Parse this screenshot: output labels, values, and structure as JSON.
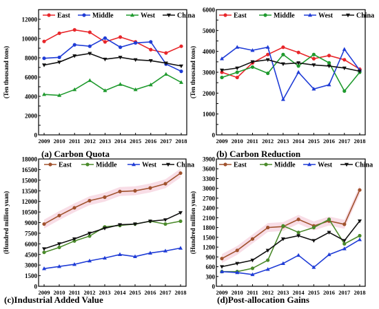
{
  "chart_data": [
    {
      "type": "line",
      "caption": "(a) Carbon Quota",
      "ylabel": "(Ten thousand tons)",
      "x": [
        "2009",
        "2010",
        "2011",
        "2012",
        "2013",
        "2014",
        "2015",
        "2016",
        "2017",
        "2018"
      ],
      "ylim": [
        0,
        13000
      ],
      "yticks": [
        0,
        1000,
        2000,
        3000,
        4000,
        5000,
        6000,
        7000,
        8000,
        9000,
        10000,
        11000,
        12000,
        13000
      ],
      "legend": "top",
      "series": [
        {
          "name": "East",
          "color": "#e8262a",
          "marker": "circle",
          "values": [
            9700,
            10550,
            10900,
            10650,
            9650,
            10150,
            9650,
            8850,
            8500,
            9200
          ]
        },
        {
          "name": "Middle",
          "color": "#1f3cd6",
          "marker": "circle",
          "values": [
            7950,
            8050,
            9350,
            9200,
            10050,
            9100,
            9550,
            9650,
            7350,
            6600
          ]
        },
        {
          "name": "West",
          "color": "#1f9a2e",
          "marker": "triangle",
          "values": [
            4200,
            4100,
            4700,
            5650,
            4600,
            5250,
            4700,
            5200,
            6300,
            5450
          ]
        },
        {
          "name": "China",
          "color": "#111111",
          "marker": "triangle-down",
          "values": [
            7250,
            7550,
            8200,
            8450,
            7850,
            8050,
            7800,
            7700,
            7450,
            7150
          ]
        }
      ]
    },
    {
      "type": "line",
      "caption": "(b)  Carbon Reduction",
      "ylabel": "(Ten thousand tons)",
      "x": [
        "2009",
        "2010",
        "2011",
        "2012",
        "2013",
        "2014",
        "2015",
        "2016",
        "2017",
        "2018"
      ],
      "ylim": [
        0,
        6000
      ],
      "yticks": [
        0,
        500,
        1000,
        1500,
        2000,
        2500,
        3000,
        3500,
        4000,
        4500,
        5000,
        5500,
        6000
      ],
      "legend": "top",
      "series": [
        {
          "name": "East",
          "color": "#e8262a",
          "marker": "circle",
          "values": [
            3000,
            2750,
            3450,
            3850,
            4200,
            3950,
            3650,
            3800,
            3600,
            3150
          ]
        },
        {
          "name": "Middle",
          "color": "#1f9a2e",
          "marker": "circle",
          "values": [
            2750,
            3000,
            3250,
            2950,
            3850,
            3300,
            3850,
            3450,
            2100,
            3000
          ]
        },
        {
          "name": "West",
          "color": "#1f3cd6",
          "marker": "triangle",
          "values": [
            3650,
            4200,
            4050,
            4200,
            1700,
            3000,
            2200,
            2400,
            4100,
            3100
          ]
        },
        {
          "name": "China",
          "color": "#111111",
          "marker": "triangle-down",
          "values": [
            3100,
            3200,
            3500,
            3600,
            3400,
            3450,
            3350,
            3300,
            3200,
            3050
          ]
        }
      ]
    },
    {
      "type": "line",
      "caption": "(c)Industrial Added Value",
      "ylabel": "(Hundred million yuan)",
      "x": [
        "2009",
        "2010",
        "2011",
        "2012",
        "2013",
        "2014",
        "2015",
        "2016",
        "2017",
        "2018"
      ],
      "ylim": [
        0,
        18000
      ],
      "yticks": [
        0,
        1500,
        3000,
        4500,
        6000,
        7500,
        9000,
        10500,
        12000,
        13500,
        15000,
        16500,
        18000
      ],
      "legend": "top",
      "series": [
        {
          "name": "East",
          "color": "#a0522d",
          "marker": "circle",
          "values": [
            8800,
            10000,
            11100,
            12100,
            12600,
            13400,
            13500,
            13900,
            14500,
            16000
          ]
        },
        {
          "name": "Middle",
          "color": "#4a8a2a",
          "marker": "circle",
          "values": [
            4800,
            5500,
            6400,
            7100,
            8400,
            8600,
            8800,
            9200,
            8800,
            9200
          ]
        },
        {
          "name": "West",
          "color": "#1f3cd6",
          "marker": "triangle",
          "values": [
            2500,
            2800,
            3100,
            3600,
            4000,
            4500,
            4200,
            4700,
            5000,
            5400
          ]
        },
        {
          "name": "China",
          "color": "#111111",
          "marker": "triangle-down",
          "values": [
            5300,
            6000,
            6700,
            7500,
            8200,
            8700,
            8800,
            9200,
            9400,
            10400
          ]
        }
      ]
    },
    {
      "type": "line",
      "caption": "(d)Post-allocation Gains",
      "ylabel": "(Hundred million yuan)",
      "x": [
        "2009",
        "2010",
        "2011",
        "2012",
        "2013",
        "2014",
        "2015",
        "2016",
        "2017",
        "2018"
      ],
      "ylim": [
        0,
        3900
      ],
      "yticks": [
        0,
        300,
        600,
        900,
        1200,
        1500,
        1800,
        2100,
        2400,
        2700,
        3000,
        3300,
        3600,
        3900
      ],
      "legend": "top",
      "series": [
        {
          "name": "East",
          "color": "#a0522d",
          "marker": "circle",
          "values": [
            850,
            1100,
            1450,
            1800,
            1830,
            2050,
            1850,
            2000,
            1900,
            2950
          ]
        },
        {
          "name": "Middle",
          "color": "#4a8a2a",
          "marker": "circle",
          "values": [
            450,
            450,
            550,
            800,
            1850,
            1650,
            1800,
            2050,
            1300,
            1550
          ]
        },
        {
          "name": "West",
          "color": "#1f3cd6",
          "marker": "triangle",
          "values": [
            450,
            420,
            360,
            520,
            700,
            950,
            580,
            970,
            1150,
            1430
          ]
        },
        {
          "name": "China",
          "color": "#111111",
          "marker": "triangle-down",
          "values": [
            600,
            700,
            800,
            1100,
            1450,
            1550,
            1400,
            1650,
            1400,
            2000
          ]
        }
      ]
    }
  ]
}
